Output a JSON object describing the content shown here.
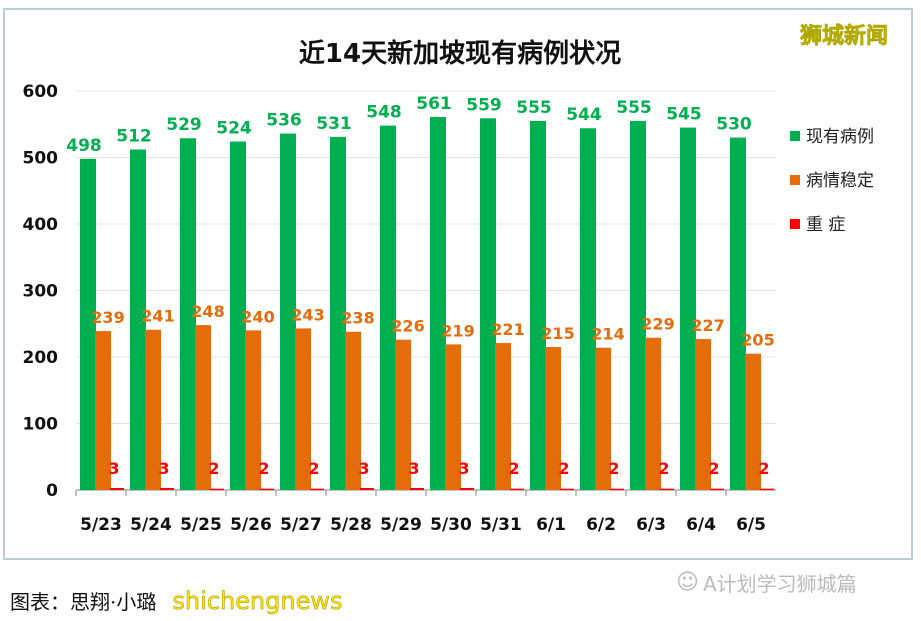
{
  "chart_data": {
    "type": "bar",
    "title": "近14天新加坡现有病例状况",
    "categories": [
      "5/23",
      "5/24",
      "5/25",
      "5/26",
      "5/27",
      "5/28",
      "5/29",
      "5/30",
      "5/31",
      "6/1",
      "6/2",
      "6/3",
      "6/4",
      "6/5"
    ],
    "series": [
      {
        "name": "现有病例",
        "color": "#00b050",
        "values": [
          498,
          512,
          529,
          524,
          536,
          531,
          548,
          561,
          559,
          555,
          544,
          555,
          545,
          530
        ]
      },
      {
        "name": "病情稳定",
        "color": "#e46c0a",
        "values": [
          239,
          241,
          248,
          240,
          243,
          238,
          226,
          219,
          221,
          215,
          214,
          229,
          227,
          205
        ]
      },
      {
        "name": "重 症",
        "color": "#ff0000",
        "values": [
          3,
          3,
          2,
          2,
          2,
          3,
          3,
          3,
          2,
          2,
          2,
          2,
          2,
          2
        ]
      }
    ],
    "ylim": [
      0,
      600
    ],
    "yticks": [
      0,
      100,
      200,
      300,
      400,
      500,
      600
    ],
    "grid": true,
    "legend": "right",
    "xlabel": "",
    "ylabel": ""
  },
  "watermark_top": "狮城新闻",
  "caption": "图表：思翔·小璐",
  "caption_watermark": "shichengnews",
  "footer_brand": "A计划学习狮城篇"
}
